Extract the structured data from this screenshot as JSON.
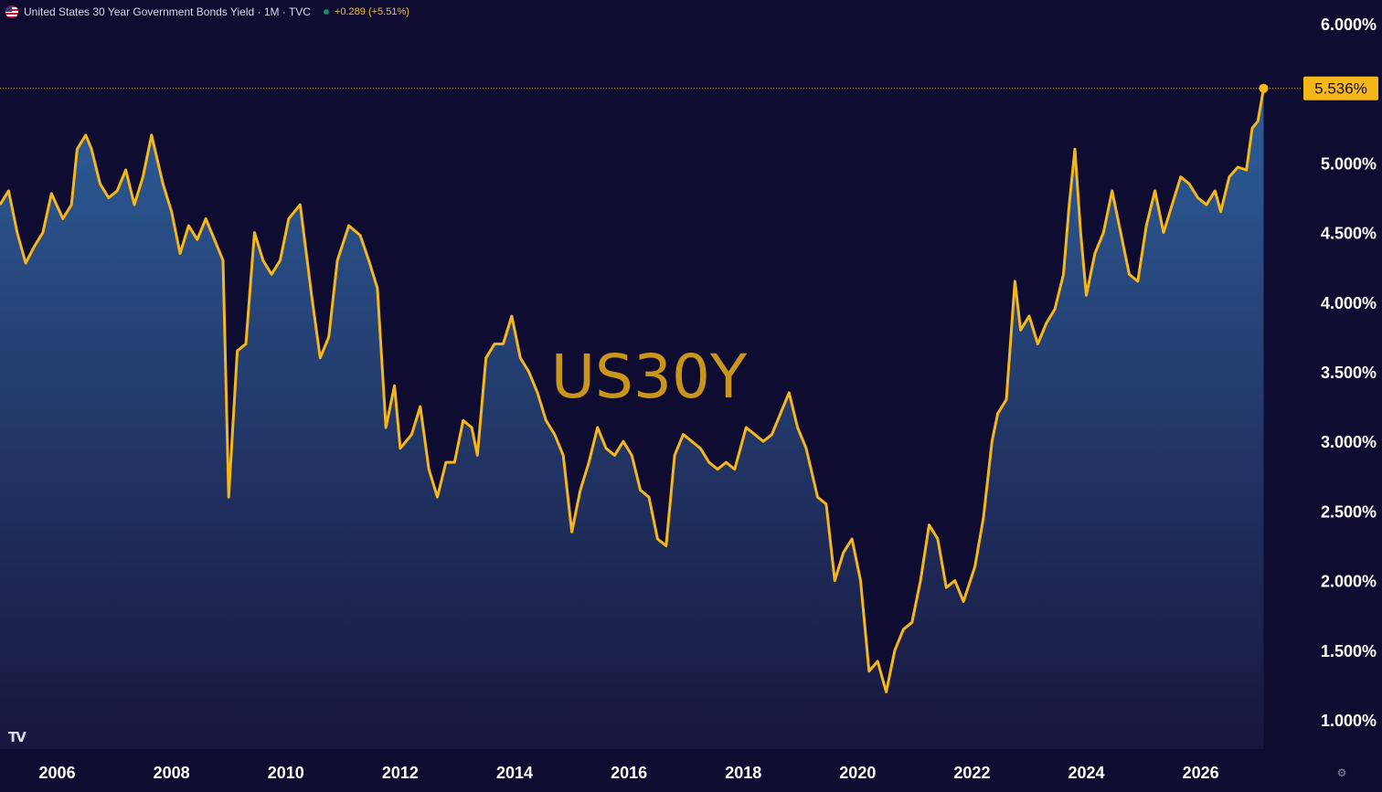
{
  "header": {
    "title": "United States 30 Year Government Bonds Yield · 1M · TVC",
    "change": "+0.289 (+5.51%)",
    "flag_icon": "us-flag-icon"
  },
  "watermark": "US30Y",
  "last_price_label": "5.536%",
  "logo": "TV",
  "colors": {
    "background": "#0f0c31",
    "line": "#f6b719",
    "fill_top": "#2f63a0",
    "fill_bottom": "#1a1840",
    "axis_text": "#ffffff",
    "badge": "#f6b719",
    "watermark": "#c9951a"
  },
  "chart_data": {
    "type": "area",
    "title": "United States 30 Year Government Bonds Yield · 1M · TVC",
    "xlabel": "",
    "ylabel": "",
    "x_ticks": [
      "2006",
      "2008",
      "2010",
      "2012",
      "2014",
      "2016",
      "2018",
      "2020",
      "2022",
      "2024",
      "2026"
    ],
    "y_ticks": [
      "1.000%",
      "1.500%",
      "2.000%",
      "2.500%",
      "3.000%",
      "3.500%",
      "4.000%",
      "4.500%",
      "5.000%",
      "6.000%"
    ],
    "ylim": [
      0.75,
      6.2
    ],
    "xlim": [
      2005.0,
      2027.7
    ],
    "last_value": 5.536,
    "series": [
      {
        "values": [
          [
            2005.0,
            4.7
          ],
          [
            2005.15,
            4.8
          ],
          [
            2005.3,
            4.5
          ],
          [
            2005.45,
            4.28
          ],
          [
            2005.6,
            4.4
          ],
          [
            2005.75,
            4.5
          ],
          [
            2005.9,
            4.78
          ],
          [
            2006.1,
            4.6
          ],
          [
            2006.25,
            4.7
          ],
          [
            2006.35,
            5.1
          ],
          [
            2006.5,
            5.2
          ],
          [
            2006.6,
            5.1
          ],
          [
            2006.75,
            4.85
          ],
          [
            2006.9,
            4.75
          ],
          [
            2007.05,
            4.8
          ],
          [
            2007.2,
            4.95
          ],
          [
            2007.35,
            4.7
          ],
          [
            2007.5,
            4.9
          ],
          [
            2007.65,
            5.2
          ],
          [
            2007.85,
            4.85
          ],
          [
            2008.0,
            4.65
          ],
          [
            2008.15,
            4.35
          ],
          [
            2008.3,
            4.55
          ],
          [
            2008.45,
            4.45
          ],
          [
            2008.6,
            4.6
          ],
          [
            2008.75,
            4.45
          ],
          [
            2008.9,
            4.3
          ],
          [
            2009.0,
            2.6
          ],
          [
            2009.15,
            3.65
          ],
          [
            2009.3,
            3.7
          ],
          [
            2009.45,
            4.5
          ],
          [
            2009.6,
            4.3
          ],
          [
            2009.75,
            4.2
          ],
          [
            2009.9,
            4.3
          ],
          [
            2010.05,
            4.6
          ],
          [
            2010.25,
            4.7
          ],
          [
            2010.45,
            4.05
          ],
          [
            2010.6,
            3.6
          ],
          [
            2010.75,
            3.75
          ],
          [
            2010.9,
            4.3
          ],
          [
            2011.1,
            4.55
          ],
          [
            2011.3,
            4.48
          ],
          [
            2011.45,
            4.3
          ],
          [
            2011.6,
            4.1
          ],
          [
            2011.75,
            3.1
          ],
          [
            2011.9,
            3.4
          ],
          [
            2012.0,
            2.95
          ],
          [
            2012.2,
            3.05
          ],
          [
            2012.35,
            3.25
          ],
          [
            2012.5,
            2.8
          ],
          [
            2012.65,
            2.6
          ],
          [
            2012.8,
            2.85
          ],
          [
            2012.95,
            2.85
          ],
          [
            2013.1,
            3.15
          ],
          [
            2013.25,
            3.1
          ],
          [
            2013.35,
            2.9
          ],
          [
            2013.5,
            3.6
          ],
          [
            2013.65,
            3.7
          ],
          [
            2013.8,
            3.7
          ],
          [
            2013.95,
            3.9
          ],
          [
            2014.1,
            3.6
          ],
          [
            2014.25,
            3.5
          ],
          [
            2014.4,
            3.35
          ],
          [
            2014.55,
            3.15
          ],
          [
            2014.7,
            3.05
          ],
          [
            2014.85,
            2.9
          ],
          [
            2015.0,
            2.35
          ],
          [
            2015.15,
            2.65
          ],
          [
            2015.3,
            2.85
          ],
          [
            2015.45,
            3.1
          ],
          [
            2015.6,
            2.95
          ],
          [
            2015.75,
            2.9
          ],
          [
            2015.9,
            3.0
          ],
          [
            2016.05,
            2.9
          ],
          [
            2016.2,
            2.65
          ],
          [
            2016.35,
            2.6
          ],
          [
            2016.5,
            2.3
          ],
          [
            2016.65,
            2.25
          ],
          [
            2016.8,
            2.9
          ],
          [
            2016.95,
            3.05
          ],
          [
            2017.1,
            3.0
          ],
          [
            2017.25,
            2.95
          ],
          [
            2017.4,
            2.85
          ],
          [
            2017.55,
            2.8
          ],
          [
            2017.7,
            2.85
          ],
          [
            2017.85,
            2.8
          ],
          [
            2018.05,
            3.1
          ],
          [
            2018.2,
            3.05
          ],
          [
            2018.35,
            3.0
          ],
          [
            2018.5,
            3.05
          ],
          [
            2018.65,
            3.2
          ],
          [
            2018.8,
            3.35
          ],
          [
            2018.95,
            3.1
          ],
          [
            2019.1,
            2.95
          ],
          [
            2019.3,
            2.6
          ],
          [
            2019.45,
            2.55
          ],
          [
            2019.6,
            2.0
          ],
          [
            2019.75,
            2.2
          ],
          [
            2019.9,
            2.3
          ],
          [
            2020.05,
            2.0
          ],
          [
            2020.2,
            1.35
          ],
          [
            2020.35,
            1.42
          ],
          [
            2020.5,
            1.2
          ],
          [
            2020.65,
            1.5
          ],
          [
            2020.8,
            1.65
          ],
          [
            2020.95,
            1.7
          ],
          [
            2021.1,
            2.0
          ],
          [
            2021.25,
            2.4
          ],
          [
            2021.4,
            2.3
          ],
          [
            2021.55,
            1.95
          ],
          [
            2021.7,
            2.0
          ],
          [
            2021.85,
            1.85
          ],
          [
            2022.05,
            2.1
          ],
          [
            2022.2,
            2.45
          ],
          [
            2022.35,
            3.0
          ],
          [
            2022.45,
            3.2
          ],
          [
            2022.6,
            3.3
          ],
          [
            2022.75,
            4.15
          ],
          [
            2022.85,
            3.8
          ],
          [
            2023.0,
            3.9
          ],
          [
            2023.15,
            3.7
          ],
          [
            2023.3,
            3.85
          ],
          [
            2023.45,
            3.95
          ],
          [
            2023.6,
            4.2
          ],
          [
            2023.7,
            4.7
          ],
          [
            2023.8,
            5.1
          ],
          [
            2023.9,
            4.5
          ],
          [
            2024.0,
            4.05
          ],
          [
            2024.15,
            4.35
          ],
          [
            2024.3,
            4.5
          ],
          [
            2024.45,
            4.8
          ],
          [
            2024.6,
            4.5
          ],
          [
            2024.75,
            4.2
          ],
          [
            2024.9,
            4.15
          ],
          [
            2025.05,
            4.55
          ],
          [
            2025.2,
            4.8
          ],
          [
            2025.35,
            4.5
          ],
          [
            2025.5,
            4.7
          ],
          [
            2025.65,
            4.9
          ],
          [
            2025.8,
            4.85
          ],
          [
            2025.95,
            4.75
          ],
          [
            2026.1,
            4.7
          ],
          [
            2026.25,
            4.8
          ],
          [
            2026.35,
            4.65
          ],
          [
            2026.5,
            4.9
          ],
          [
            2026.65,
            4.97
          ],
          [
            2026.8,
            4.95
          ],
          [
            2026.9,
            5.25
          ],
          [
            2027.0,
            5.3
          ],
          [
            2027.1,
            5.536
          ]
        ]
      }
    ],
    "grid": false,
    "legend": "none"
  }
}
